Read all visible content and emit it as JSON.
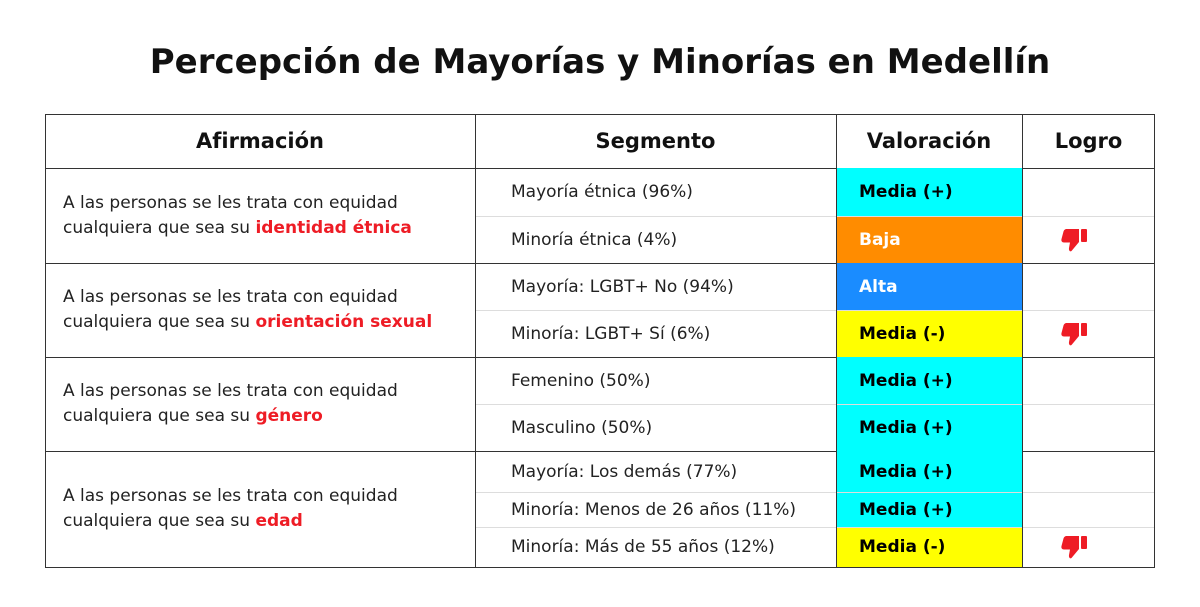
{
  "header": {
    "title": "Percepción de Mayorías y Minorías en Medellín"
  },
  "table": {
    "columns": [
      "Afirmación",
      "Segmento",
      "Valoración",
      "Logro"
    ],
    "groups": [
      {
        "text": "A las personas se les trata con equidad cualquiera que sea su",
        "highlight": "identidad étnica",
        "rows": [
          {
            "segment": "Mayoría étnica (96%)",
            "rating": "Media (+)",
            "color": "#00ffff",
            "text_color": "#000000",
            "thumbs_down": false
          },
          {
            "segment": "Minoría étnica (4%)",
            "rating": "Baja",
            "color": "#ff8c00",
            "text_color": "#ffffff",
            "thumbs_down": true
          }
        ]
      },
      {
        "text": "A las personas se les trata con equidad cualquiera que sea su",
        "highlight": "orientación sexual",
        "rows": [
          {
            "segment": "Mayoría: LGBT+ No (94%)",
            "rating": "Alta",
            "color": "#1a8cff",
            "text_color": "#ffffff",
            "thumbs_down": false
          },
          {
            "segment": "Minoría: LGBT+ Sí (6%)",
            "rating": "Media (-)",
            "color": "#ffff00",
            "text_color": "#000000",
            "thumbs_down": true
          }
        ]
      },
      {
        "text": "A las personas se les trata con equidad cualquiera que sea su",
        "highlight": "género",
        "rows": [
          {
            "segment": "Femenino (50%)",
            "rating": "Media (+)",
            "color": "#00ffff",
            "text_color": "#000000",
            "thumbs_down": false
          },
          {
            "segment": "Masculino (50%)",
            "rating": "Media (+)",
            "color": "#00ffff",
            "text_color": "#000000",
            "thumbs_down": false
          }
        ]
      },
      {
        "text": "A las personas se les trata con equidad cualquiera que sea su",
        "highlight": "edad",
        "rows": [
          {
            "segment": "Mayoría: Los demás (77%)",
            "rating": "Media (+)",
            "color": "#00ffff",
            "text_color": "#000000",
            "thumbs_down": false
          },
          {
            "segment": "Minoría: Menos de 26 años (11%)",
            "rating": "Media (+)",
            "color": "#00ffff",
            "text_color": "#000000",
            "thumbs_down": false
          },
          {
            "segment": "Minoría: Más de 55 años (12%)",
            "rating": "Media (-)",
            "color": "#ffff00",
            "text_color": "#000000",
            "thumbs_down": true
          }
        ]
      }
    ]
  }
}
